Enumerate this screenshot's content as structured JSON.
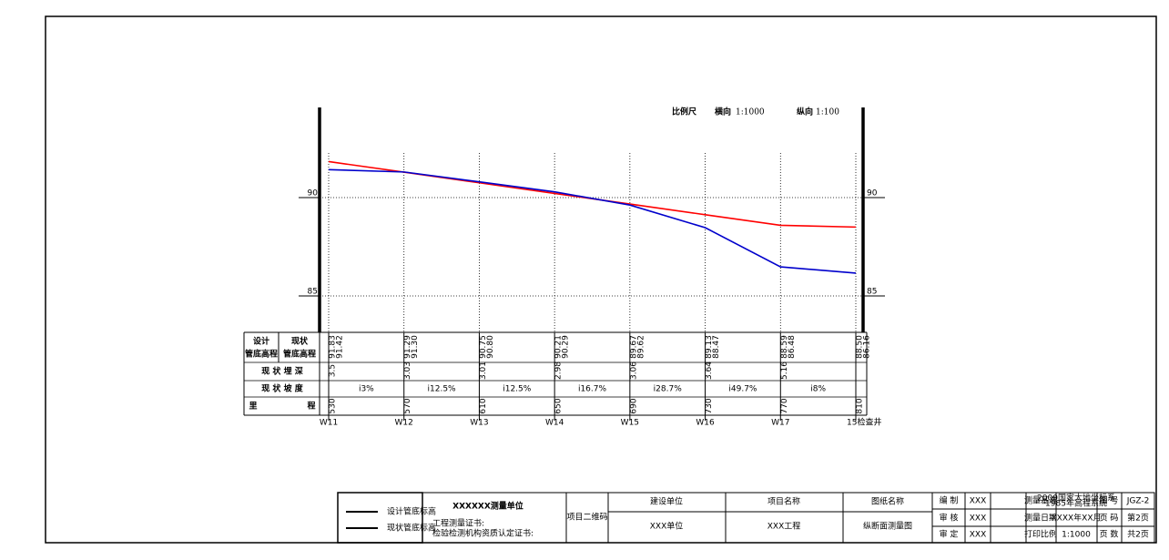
{
  "chart_data": {
    "type": "line",
    "scale_label": "比例尺",
    "scale_h_label": "横向",
    "scale_h": "1:1000",
    "scale_v_label": "纵向",
    "scale_v": "1:100",
    "x": [
      530,
      570,
      610,
      650,
      690,
      730,
      770,
      810
    ],
    "xlim": [
      530,
      810
    ],
    "ylim": [
      83.15,
      94.58
    ],
    "yticks": [
      85,
      90
    ],
    "grid": true,
    "series": [
      {
        "name": "设计管底标高",
        "color": "#ff0000",
        "values": [
          91.83,
          91.29,
          90.75,
          90.21,
          89.67,
          89.13,
          88.59,
          88.5
        ],
        "value_labels": [
          "91.83",
          "91.29",
          "90.75",
          "90.21",
          "89.67",
          "89.13",
          "88.59",
          "88.50"
        ]
      },
      {
        "name": "现状管底标高",
        "color": "#0000cc",
        "values": [
          91.42,
          91.3,
          90.8,
          90.29,
          89.62,
          88.47,
          86.48,
          86.16
        ],
        "value_labels": [
          "91.42",
          "91.30",
          "90.80",
          "90.29",
          "89.62",
          "88.47",
          "86.48",
          "86.16"
        ]
      }
    ]
  },
  "profile_table": {
    "design_header": [
      "设计",
      "管底高程"
    ],
    "current_header": [
      "现状",
      "管底高程"
    ],
    "depth_header": "现 状 埋 深",
    "slope_header": "现 状 坡 度",
    "mileage_header": [
      "里",
      "程"
    ],
    "depths": [
      3.5,
      3.03,
      3.01,
      2.98,
      3.06,
      3.64,
      5.16
    ],
    "slopes": [
      "i3%",
      "i12.5%",
      "i12.5%",
      "i16.7%",
      "i28.7%",
      "i49.7%",
      "i8%"
    ],
    "stations": [
      "W11",
      "W12",
      "W13",
      "W14",
      "W15",
      "W16",
      "W17",
      "15检查井"
    ]
  },
  "title_block": {
    "company": "XXXXXX测量单位",
    "cert1": "工程测量证书:",
    "cert2": "检验检测机构资质认定证书:",
    "qr": "项目二维码",
    "builder_label": "建设单位",
    "builder": "XXX单位",
    "project_label": "项目名称",
    "project": "XXX工程",
    "drawing_label": "图纸名称",
    "drawing": "纵断面测量图",
    "compile_label": "编 制",
    "compile": "XXX",
    "review_label": "审 核",
    "review": "XXX",
    "approve_label": "审 定",
    "approve": "XXX",
    "datum_label": "测量基准",
    "datum": [
      "2000国家大地坐标系",
      "1985年高程系统"
    ],
    "date_label": "测量日期",
    "date": "XXXX年XX月",
    "print_label": "打印比例",
    "print": "1:1000",
    "no_label": "图 号",
    "no": "JGZ-2",
    "page_label": "页 码",
    "page": "第2页",
    "pages_label": "页 数",
    "pages": "共2页"
  }
}
